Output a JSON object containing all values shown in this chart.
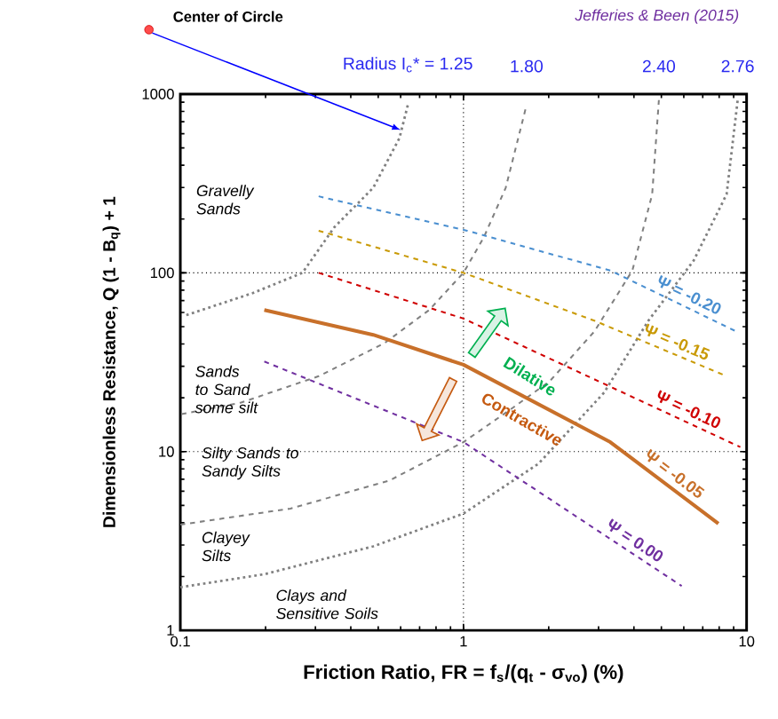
{
  "chart_data": {
    "type": "line",
    "log": "xy",
    "xlabel": "Friction Ratio, FR = f$_{s}$/(q$_{t}$ - σ$_{vo}$)   (%)",
    "ylabel": "Dimensionless Resistance,  Q (1 - B$_{q}$) + 1",
    "xlim": [
      0.1,
      10
    ],
    "ylim": [
      1,
      1000
    ],
    "xticks": [
      0.1,
      1,
      10
    ],
    "yticks": [
      1,
      10,
      100,
      1000
    ],
    "series": [
      {
        "name": "Radius I$_{c}$* = 1.25",
        "color": "#808080",
        "line_style": "dotted",
        "x": [
          0.105,
          0.18,
          0.27,
          0.35,
          0.48,
          0.594,
          0.636
        ],
        "values": [
          58,
          77,
          100,
          180,
          299,
          566,
          867
        ]
      },
      {
        "name": "1.80",
        "color": "#808080",
        "line_style": "dashed",
        "x": [
          0.101,
          0.164,
          0.308,
          0.527,
          0.757,
          1.0,
          1.18,
          1.41,
          1.67
        ],
        "values": [
          16.2,
          18.8,
          26.4,
          40.5,
          62,
          100,
          158,
          299,
          867
        ]
      },
      {
        "name": "2.40",
        "color": "#808080",
        "line_style": "dashed",
        "x": [
          0.1,
          0.245,
          0.549,
          1.0,
          1.45,
          2.02,
          2.9,
          3.95,
          4.64,
          4.9
        ],
        "values": [
          3.9,
          4.8,
          6.9,
          11.3,
          17,
          24.8,
          47,
          103,
          275,
          925
        ]
      },
      {
        "name": "2.76",
        "color": "#808080",
        "line_style": "dotted",
        "x": [
          0.1,
          0.198,
          0.48,
          1.0,
          1.84,
          3.14,
          4.5,
          6.5,
          8.5,
          9.3
        ],
        "values": [
          1.74,
          2.06,
          2.95,
          4.5,
          8.55,
          21.4,
          54,
          117,
          275,
          925
        ]
      },
      {
        "name": "Ψ = -0.20",
        "color": "#4a8fd0",
        "line_style": "dashed",
        "x": [
          0.308,
          1.03,
          3.3,
          9.2
        ],
        "values": [
          268,
          172,
          103,
          47
        ]
      },
      {
        "name": "Ψ = -0.15",
        "color": "#c99a06",
        "line_style": "dashed",
        "x": [
          0.308,
          1.0,
          2.9,
          8.5
        ],
        "values": [
          172,
          100,
          54,
          26.4
        ]
      },
      {
        "name": "Ψ = -0.10",
        "color": "#d00000",
        "line_style": "dashed",
        "x": [
          0.308,
          1.0,
          9.5
        ],
        "values": [
          100,
          55.5,
          10.6
        ]
      },
      {
        "name": "Ψ = -0.05",
        "color": "#c8702a",
        "line_style": "solid",
        "x": [
          0.198,
          0.48,
          1.0,
          3.3,
          7.95
        ],
        "values": [
          62,
          45,
          30.6,
          11.3,
          3.96
        ]
      },
      {
        "name": "Ψ = 0.00",
        "color": "#7030a0",
        "line_style": "dashed",
        "x": [
          0.198,
          1.0,
          5.9
        ],
        "values": [
          31.9,
          11.3,
          1.77
        ]
      }
    ],
    "ref_lines": [
      {
        "axis": "x",
        "value": 1,
        "color": "#000000",
        "line_style": "dotted"
      },
      {
        "axis": "y",
        "value": 10,
        "color": "#000000",
        "line_style": "dotted"
      },
      {
        "axis": "y",
        "value": 100,
        "color": "#000000",
        "line_style": "dotted"
      }
    ],
    "annotations": [
      "Center of Circle",
      "Jefferies & Been (2015)",
      "Gravelly Sands",
      "Sands to Sand some silt",
      "Silty Sands to Sandy Silts",
      "Clayey Silts",
      "Clays and Sensitive Soils",
      "Dilative",
      "Contractive"
    ]
  }
}
